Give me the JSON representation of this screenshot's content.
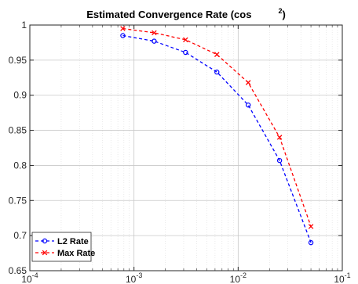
{
  "chart_data": {
    "type": "line",
    "title": "Estimated Convergence Rate (cos",
    "title_suffix": "2",
    "title_suffix_close": ")",
    "xlabel": "",
    "ylabel": "",
    "xscale": "log",
    "xlim": [
      0.0001,
      0.1
    ],
    "ylim": [
      0.65,
      1.0
    ],
    "grid": true,
    "legend_position": "bottom-left",
    "x_ticks": [
      {
        "value": 0.0001,
        "base": "10",
        "exp": "-4"
      },
      {
        "value": 0.001,
        "base": "10",
        "exp": "-3"
      },
      {
        "value": 0.01,
        "base": "10",
        "exp": "-2"
      },
      {
        "value": 0.1,
        "base": "10",
        "exp": "-1"
      }
    ],
    "y_ticks": [
      "0.65",
      "0.7",
      "0.75",
      "0.8",
      "0.85",
      "0.9",
      "0.95",
      "1"
    ],
    "x": [
      0.00078125,
      0.0015625,
      0.003125,
      0.00625,
      0.0125,
      0.025,
      0.05
    ],
    "series": [
      {
        "name": "L2 Rate",
        "color": "#0000ff",
        "marker": "circle",
        "values": [
          0.985,
          0.977,
          0.961,
          0.933,
          0.886,
          0.807,
          0.69
        ]
      },
      {
        "name": "Max Rate",
        "color": "#ff0000",
        "marker": "x",
        "values": [
          0.995,
          0.989,
          0.979,
          0.958,
          0.918,
          0.84,
          0.713
        ]
      }
    ]
  }
}
